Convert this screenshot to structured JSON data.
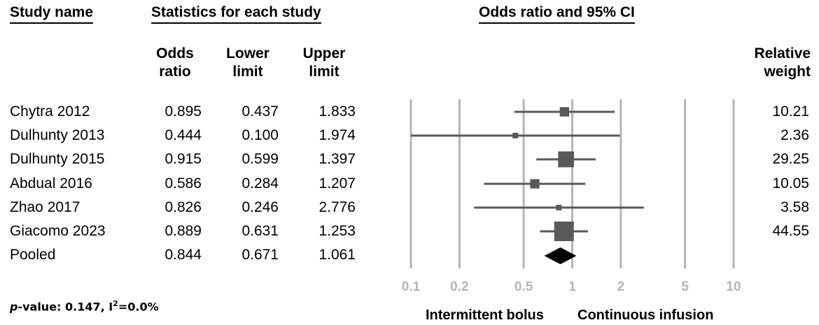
{
  "headers": {
    "study_name": "Study name",
    "statistics": "Statistics for each study",
    "odds_ratio_ci": "Odds ratio and 95% CI"
  },
  "columns": {
    "odds_ratio": [
      "Odds",
      "ratio"
    ],
    "lower_limit": [
      "Lower",
      "limit"
    ],
    "upper_limit": [
      "Upper",
      "limit"
    ],
    "relative_weight": [
      "Relative",
      "weight"
    ]
  },
  "rows": [
    {
      "study": "Chytra 2012",
      "or": "0.895",
      "lower": "0.437",
      "upper": "1.833",
      "weight": "10.21"
    },
    {
      "study": "Dulhunty 2013",
      "or": "0.444",
      "lower": "0.100",
      "upper": "1.974",
      "weight": "2.36"
    },
    {
      "study": "Dulhunty 2015",
      "or": "0.915",
      "lower": "0.599",
      "upper": "1.397",
      "weight": "29.25"
    },
    {
      "study": "Abdual 2016",
      "or": "0.586",
      "lower": "0.284",
      "upper": "1.207",
      "weight": "10.05"
    },
    {
      "study": "Zhao 2017",
      "or": "0.826",
      "lower": "0.246",
      "upper": "2.776",
      "weight": "3.58"
    },
    {
      "study": "Giacomo 2023",
      "or": "0.889",
      "lower": "0.631",
      "upper": "1.253",
      "weight": "44.55"
    }
  ],
  "pooled": {
    "study": "Pooled",
    "or": "0.844",
    "lower": "0.671",
    "upper": "1.061"
  },
  "footer": {
    "p_prefix": "p",
    "p_rest": "-value: 0.147, I",
    "sup": "2",
    "i2_rest": "=0.0%"
  },
  "axis_labels": {
    "left": "Intermittent bolus",
    "right": "Continuous infusion"
  },
  "chart_data": {
    "type": "forest",
    "scale": "log",
    "xlim": [
      0.1,
      10
    ],
    "ticks": [
      0.1,
      0.2,
      0.5,
      1,
      2,
      5,
      10
    ],
    "tick_labels": [
      "0.1",
      "0.2",
      "0.5",
      "1",
      "2",
      "5",
      "10"
    ],
    "studies": [
      {
        "name": "Chytra 2012",
        "or": 0.895,
        "lower": 0.437,
        "upper": 1.833,
        "weight": 10.21
      },
      {
        "name": "Dulhunty 2013",
        "or": 0.444,
        "lower": 0.1,
        "upper": 1.974,
        "weight": 2.36
      },
      {
        "name": "Dulhunty 2015",
        "or": 0.915,
        "lower": 0.599,
        "upper": 1.397,
        "weight": 29.25
      },
      {
        "name": "Abdual 2016",
        "or": 0.586,
        "lower": 0.284,
        "upper": 1.207,
        "weight": 10.05
      },
      {
        "name": "Zhao 2017",
        "or": 0.826,
        "lower": 0.246,
        "upper": 2.776,
        "weight": 3.58
      },
      {
        "name": "Giacomo 2023",
        "or": 0.889,
        "lower": 0.631,
        "upper": 1.253,
        "weight": 44.55
      }
    ],
    "pooled": {
      "or": 0.844,
      "lower": 0.671,
      "upper": 1.061
    },
    "colors": {
      "grid": "#b5b5b5",
      "marker": "#595959",
      "pooled": "#000000",
      "tick_text": "#b5b5b5"
    }
  }
}
